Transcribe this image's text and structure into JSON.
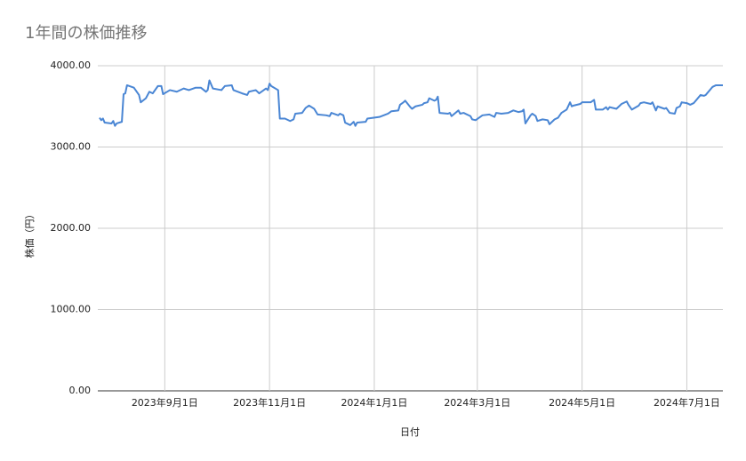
{
  "chart_data": {
    "type": "line",
    "title": "1年間の株価推移",
    "x_label": "日付",
    "y_label": "株価（円）",
    "color": "#4a86d4",
    "grid": true,
    "x": [
      "2023-07-25",
      "2023-07-26",
      "2023-07-27",
      "2023-07-28",
      "2023-08-01",
      "2023-08-02",
      "2023-08-03",
      "2023-08-04",
      "2023-08-07",
      "2023-08-08",
      "2023-08-09",
      "2023-08-10",
      "2023-08-14",
      "2023-08-15",
      "2023-08-17",
      "2023-08-18",
      "2023-08-21",
      "2023-08-23",
      "2023-08-25",
      "2023-08-28",
      "2023-08-30",
      "2023-08-31",
      "2023-09-04",
      "2023-09-08",
      "2023-09-12",
      "2023-09-15",
      "2023-09-19",
      "2023-09-22",
      "2023-09-25",
      "2023-09-26",
      "2023-09-27",
      "2023-09-29",
      "2023-10-04",
      "2023-10-06",
      "2023-10-10",
      "2023-10-11",
      "2023-10-16",
      "2023-10-19",
      "2023-10-20",
      "2023-10-24",
      "2023-10-26",
      "2023-10-30",
      "2023-10-31",
      "2023-11-01",
      "2023-11-02",
      "2023-11-06",
      "2023-11-07",
      "2023-11-10",
      "2023-11-13",
      "2023-11-15",
      "2023-11-16",
      "2023-11-20",
      "2023-11-22",
      "2023-11-24",
      "2023-11-27",
      "2023-11-29",
      "2023-12-04",
      "2023-12-06",
      "2023-12-07",
      "2023-12-11",
      "2023-12-12",
      "2023-12-14",
      "2023-12-15",
      "2023-12-18",
      "2023-12-20",
      "2023-12-21",
      "2023-12-22",
      "2023-12-27",
      "2023-12-28",
      "2024-01-04",
      "2024-01-09",
      "2024-01-11",
      "2024-01-15",
      "2024-01-16",
      "2024-01-18",
      "2024-01-19",
      "2024-01-22",
      "2024-01-23",
      "2024-01-25",
      "2024-01-29",
      "2024-01-30",
      "2024-02-01",
      "2024-02-02",
      "2024-02-05",
      "2024-02-06",
      "2024-02-07",
      "2024-02-08",
      "2024-02-13",
      "2024-02-14",
      "2024-02-15",
      "2024-02-19",
      "2024-02-20",
      "2024-02-22",
      "2024-02-26",
      "2024-02-27",
      "2024-02-29",
      "2024-03-04",
      "2024-03-08",
      "2024-03-11",
      "2024-03-12",
      "2024-03-15",
      "2024-03-19",
      "2024-03-22",
      "2024-03-25",
      "2024-03-27",
      "2024-03-28",
      "2024-03-29",
      "2024-04-01",
      "2024-04-02",
      "2024-04-04",
      "2024-04-05",
      "2024-04-08",
      "2024-04-11",
      "2024-04-12",
      "2024-04-15",
      "2024-04-17",
      "2024-04-19",
      "2024-04-22",
      "2024-04-24",
      "2024-04-25",
      "2024-04-26",
      "2024-04-30",
      "2024-05-01",
      "2024-05-06",
      "2024-05-08",
      "2024-05-09",
      "2024-05-13",
      "2024-05-15",
      "2024-05-16",
      "2024-05-17",
      "2024-05-21",
      "2024-05-23",
      "2024-05-24",
      "2024-05-27",
      "2024-05-28",
      "2024-05-30",
      "2024-06-03",
      "2024-06-04",
      "2024-06-06",
      "2024-06-10",
      "2024-06-11",
      "2024-06-13",
      "2024-06-14",
      "2024-06-18",
      "2024-06-19",
      "2024-06-21",
      "2024-06-24",
      "2024-06-25",
      "2024-06-27",
      "2024-06-28",
      "2024-07-01",
      "2024-07-03",
      "2024-07-05",
      "2024-07-09",
      "2024-07-11",
      "2024-07-12",
      "2024-07-16",
      "2024-07-18",
      "2024-07-22"
    ],
    "values": [
      3360,
      3330,
      3350,
      3300,
      3290,
      3320,
      3260,
      3290,
      3310,
      3650,
      3660,
      3760,
      3730,
      3700,
      3640,
      3550,
      3600,
      3680,
      3660,
      3750,
      3750,
      3650,
      3700,
      3680,
      3720,
      3700,
      3730,
      3730,
      3680,
      3700,
      3820,
      3720,
      3700,
      3750,
      3760,
      3700,
      3660,
      3640,
      3680,
      3700,
      3660,
      3720,
      3700,
      3780,
      3750,
      3700,
      3350,
      3350,
      3320,
      3340,
      3410,
      3420,
      3480,
      3510,
      3470,
      3400,
      3390,
      3380,
      3420,
      3390,
      3410,
      3390,
      3300,
      3270,
      3310,
      3260,
      3300,
      3310,
      3350,
      3370,
      3410,
      3440,
      3450,
      3520,
      3550,
      3570,
      3490,
      3470,
      3500,
      3520,
      3540,
      3550,
      3600,
      3570,
      3580,
      3620,
      3420,
      3410,
      3420,
      3380,
      3450,
      3410,
      3420,
      3380,
      3340,
      3330,
      3390,
      3400,
      3370,
      3420,
      3410,
      3420,
      3450,
      3430,
      3440,
      3460,
      3290,
      3390,
      3410,
      3380,
      3320,
      3340,
      3330,
      3280,
      3340,
      3360,
      3420,
      3460,
      3550,
      3500,
      3510,
      3530,
      3550,
      3550,
      3580,
      3460,
      3460,
      3490,
      3460,
      3490,
      3470,
      3510,
      3530,
      3560,
      3520,
      3460,
      3510,
      3540,
      3550,
      3530,
      3550,
      3450,
      3500,
      3470,
      3480,
      3420,
      3410,
      3480,
      3500,
      3550,
      3540,
      3520,
      3540,
      3640,
      3630,
      3640,
      3740,
      3760,
      3760
    ],
    "xlim": [
      "2023-07-24",
      "2024-07-22"
    ],
    "xticks": [
      {
        "value": "2023-09-01",
        "label": "2023年9月1日"
      },
      {
        "value": "2023-11-01",
        "label": "2023年11月1日"
      },
      {
        "value": "2024-01-01",
        "label": "2024年1月1日"
      },
      {
        "value": "2024-03-01",
        "label": "2024年3月1日"
      },
      {
        "value": "2024-05-01",
        "label": "2024年5月1日"
      },
      {
        "value": "2024-07-01",
        "label": "2024年7月1日"
      }
    ],
    "ylim": [
      0,
      4000
    ],
    "yticks": [
      {
        "value": 0,
        "label": "0.00"
      },
      {
        "value": 1000,
        "label": "1000.00"
      },
      {
        "value": 2000,
        "label": "2000.00"
      },
      {
        "value": 3000,
        "label": "3000.00"
      },
      {
        "value": 4000,
        "label": "4000.00"
      }
    ]
  }
}
